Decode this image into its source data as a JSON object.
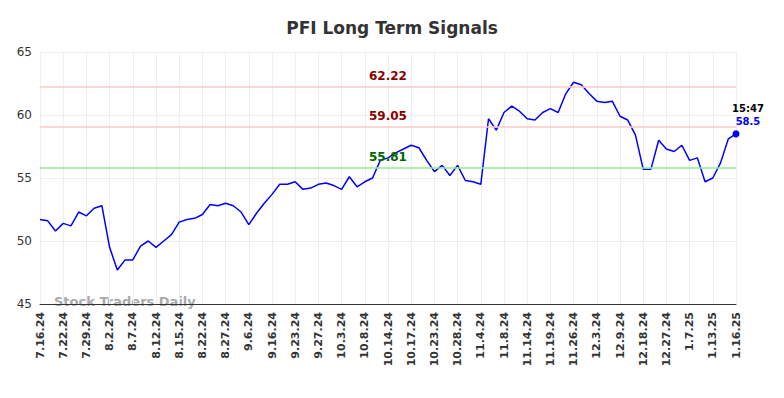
{
  "chart_data": {
    "type": "line",
    "title": "PFI Long Term Signals",
    "watermark": "Stock Traders Daily",
    "categories": [
      "7.16.24",
      null,
      null,
      "7.22.24",
      null,
      null,
      "7.29.24",
      null,
      null,
      "8.2.24",
      null,
      null,
      "8.7.24",
      null,
      null,
      "8.12.24",
      null,
      null,
      "8.15.24",
      null,
      null,
      "8.22.24",
      null,
      null,
      "8.27.24",
      null,
      null,
      "9.6.24",
      null,
      null,
      "9.16.24",
      null,
      null,
      "9.23.24",
      null,
      null,
      "9.27.24",
      null,
      null,
      "10.3.24",
      null,
      null,
      "10.8.24",
      null,
      null,
      "10.14.24",
      null,
      null,
      "10.17.24",
      null,
      null,
      "10.23.24",
      null,
      null,
      "10.28.24",
      null,
      null,
      "11.4.24",
      null,
      null,
      "11.8.24",
      null,
      null,
      "11.14.24",
      null,
      null,
      "11.19.24",
      null,
      null,
      "11.26.24",
      null,
      null,
      "12.3.24",
      null,
      null,
      "12.9.24",
      null,
      null,
      "12.18.24",
      null,
      null,
      "12.27.24",
      null,
      null,
      "1.7.25",
      null,
      null,
      "1.13.25",
      null,
      null,
      "1.16.25"
    ],
    "values": [
      51.7,
      51.6,
      50.8,
      51.4,
      51.2,
      52.3,
      52.0,
      52.6,
      52.8,
      49.5,
      47.7,
      48.5,
      48.5,
      49.6,
      50.0,
      49.5,
      50.0,
      50.5,
      51.5,
      51.7,
      51.8,
      52.1,
      52.9,
      52.8,
      53.0,
      52.8,
      52.3,
      51.3,
      52.2,
      53.0,
      53.7,
      54.5,
      54.5,
      54.7,
      54.1,
      54.2,
      54.5,
      54.6,
      54.4,
      54.1,
      55.1,
      54.3,
      54.7,
      55.0,
      56.4,
      56.6,
      57.0,
      57.3,
      57.6,
      57.4,
      56.4,
      55.5,
      56.0,
      55.2,
      56.0,
      54.8,
      54.7,
      54.5,
      59.7,
      58.8,
      60.2,
      60.7,
      60.3,
      59.7,
      59.6,
      60.2,
      60.5,
      60.2,
      61.7,
      62.6,
      62.4,
      61.7,
      61.1,
      61.0,
      61.1,
      59.9,
      59.6,
      58.4,
      55.7,
      55.7,
      58.0,
      57.3,
      57.1,
      57.6,
      56.4,
      56.6,
      54.7,
      55.0,
      56.2,
      58.1,
      58.5
    ],
    "color": "#0000ff",
    "last_point_time": "15:47",
    "reference_lines": [
      {
        "value": 62.22,
        "color": "#8b0000"
      },
      {
        "value": 59.05,
        "color": "#8b0000"
      },
      {
        "value": 55.81,
        "color": "#006400"
      }
    ],
    "ylim": [
      45,
      65
    ],
    "yticks": [
      45,
      50,
      55,
      60,
      65
    ],
    "grid": true
  }
}
